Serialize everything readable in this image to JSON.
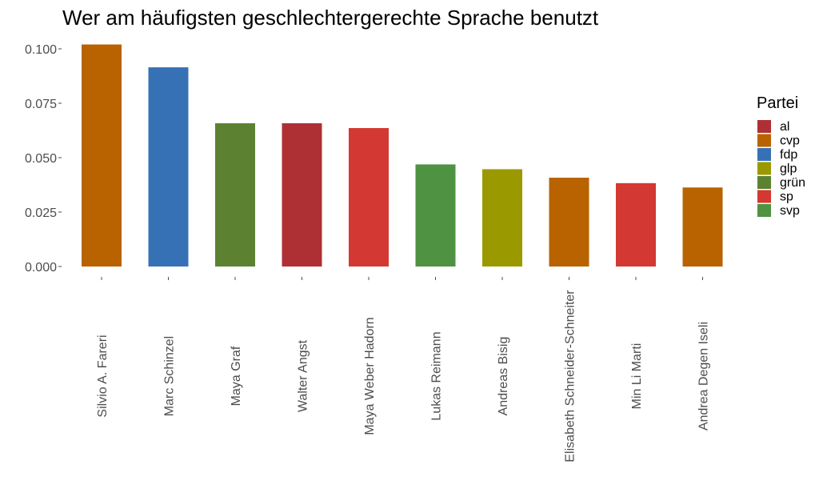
{
  "chart_data": {
    "type": "bar",
    "title": "Wer am häufigsten geschlechtergerechte Sprache benutzt",
    "xlabel": "",
    "ylabel": "",
    "ylim": [
      0,
      0.1
    ],
    "yticks": [
      "0.000",
      "0.025",
      "0.050",
      "0.075",
      "0.100"
    ],
    "ytick_values": [
      0,
      0.025,
      0.05,
      0.075,
      0.1
    ],
    "grid": false,
    "categories": [
      "Silvio A. Fareri",
      "Marc Schinzel",
      "Maya Graf",
      "Walter Angst",
      "Maya Weber Hadorn",
      "Lukas Reimann",
      "Andreas Bisig",
      "Elisabeth Schneider-Schneiter",
      "Min Li Marti",
      "Andrea Degen Iseli"
    ],
    "values": [
      0.102,
      0.0915,
      0.0658,
      0.0658,
      0.0636,
      0.0469,
      0.0447,
      0.0408,
      0.0383,
      0.0363
    ],
    "parties": [
      "cvp",
      "fdp",
      "grün",
      "al",
      "sp",
      "svp",
      "glp",
      "cvp",
      "sp",
      "cvp"
    ],
    "legend": {
      "title": "Partei",
      "position": "right",
      "entries": [
        {
          "label": "al",
          "color": "#AE3035"
        },
        {
          "label": "cvp",
          "color": "#B86300"
        },
        {
          "label": "fdp",
          "color": "#3771B5"
        },
        {
          "label": "glp",
          "color": "#9A9A00"
        },
        {
          "label": "grün",
          "color": "#5C8231"
        },
        {
          "label": "sp",
          "color": "#D43832"
        },
        {
          "label": "svp",
          "color": "#4E9242"
        }
      ]
    }
  }
}
